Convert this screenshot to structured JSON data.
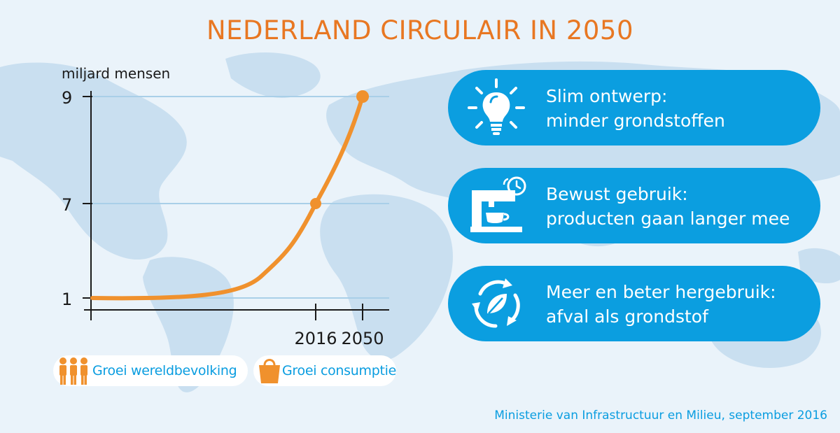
{
  "title": "NEDERLAND CIRCULAIR IN 2050",
  "colors": {
    "accent": "#e87722",
    "brand_blue": "#0b9ee0",
    "map": "#c6dcec",
    "background": "#eaf3fa"
  },
  "chart_data": {
    "type": "line",
    "title": "",
    "xlabel": "",
    "ylabel": "miljard mensen",
    "y_ticks": [
      "1",
      "7",
      "9"
    ],
    "x_ticks": [
      "2016",
      "2050"
    ],
    "x_tick_values": [
      2016,
      2050
    ],
    "series": [
      {
        "values_x": [
          2016,
          2050
        ],
        "values_y": [
          7,
          9
        ]
      }
    ],
    "curve_start": {
      "y": 1
    },
    "grid": true,
    "legend_position": "bottom-left"
  },
  "legend": [
    {
      "label": "Groei wereldbevolking",
      "icon": "people-icon"
    },
    {
      "label": "Groei consumptie",
      "icon": "shopping-bag-icon"
    }
  ],
  "pills": [
    {
      "icon": "lightbulb-icon",
      "line1": "Slim ontwerp:",
      "line2": "minder grondstoffen"
    },
    {
      "icon": "coffee-machine-icon",
      "line1": "Bewust gebruik:",
      "line2": "producten gaan langer mee"
    },
    {
      "icon": "recycle-leaf-icon",
      "line1": "Meer en beter hergebruik:",
      "line2": "afval als grondstof"
    }
  ],
  "source": "Ministerie van Infrastructuur en Milieu, september 2016"
}
